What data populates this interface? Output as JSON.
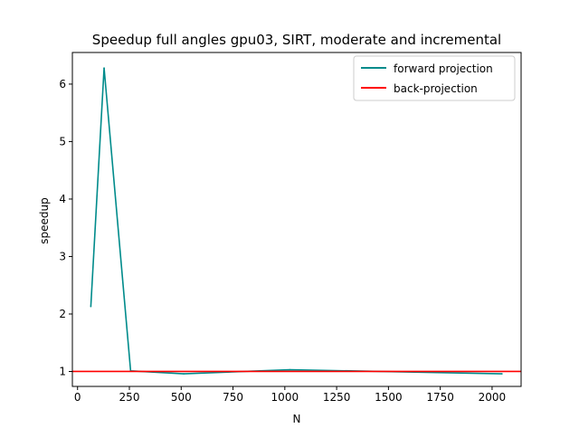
{
  "chart_data": {
    "type": "line",
    "title": "Speedup full angles gpu03, SIRT, moderate and incremental",
    "xlabel": "N",
    "ylabel": "speedup",
    "xlim": [
      -25,
      2140
    ],
    "ylim": [
      0.74,
      6.55
    ],
    "x_ticks": [
      0,
      250,
      500,
      750,
      1000,
      1250,
      1500,
      1750,
      2000
    ],
    "y_ticks": [
      1,
      2,
      3,
      4,
      5,
      6
    ],
    "grid": false,
    "legend_position": "top-right",
    "series": [
      {
        "name": "forward projection",
        "color": "#008b8b",
        "style": "line",
        "x": [
          64,
          128,
          256,
          512,
          1024,
          2048
        ],
        "y": [
          2.13,
          6.28,
          1.01,
          0.96,
          1.03,
          0.96
        ]
      },
      {
        "name": "back-projection",
        "color": "#ff0000",
        "style": "hline",
        "y": 1.0
      }
    ]
  }
}
